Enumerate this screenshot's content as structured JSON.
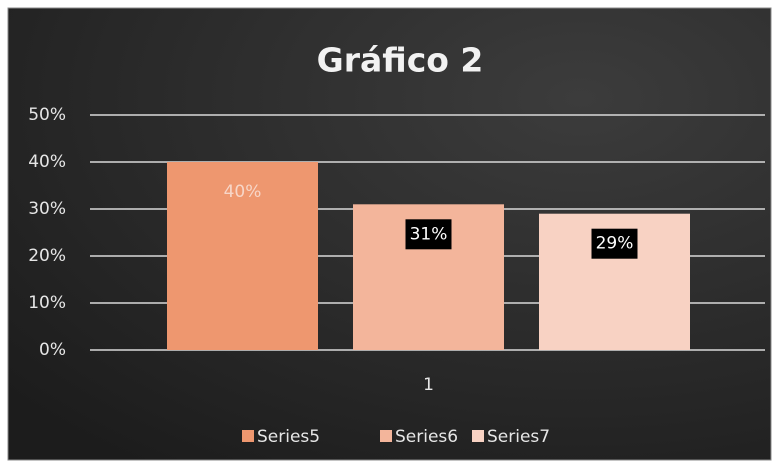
{
  "chart_data": {
    "type": "bar",
    "title": "Gráfico 2",
    "categories": [
      "1"
    ],
    "series": [
      {
        "name": "Series5",
        "color": "#ee976f",
        "values": [
          40
        ],
        "value_labels": [
          "40%"
        ]
      },
      {
        "name": "Series6",
        "color": "#f3b59b",
        "values": [
          31
        ],
        "value_labels": [
          "31%"
        ]
      },
      {
        "name": "Series7",
        "color": "#f8d2c3",
        "values": [
          29
        ],
        "value_labels": [
          "29%"
        ]
      }
    ],
    "ylim": [
      0,
      50
    ],
    "yticks": [
      {
        "value": 0,
        "label": "0%"
      },
      {
        "value": 10,
        "label": "10%"
      },
      {
        "value": 20,
        "label": "20%"
      },
      {
        "value": 30,
        "label": "30%"
      },
      {
        "value": 40,
        "label": "40%"
      },
      {
        "value": 50,
        "label": "50%"
      }
    ],
    "grid": true,
    "legend": "bottom"
  }
}
